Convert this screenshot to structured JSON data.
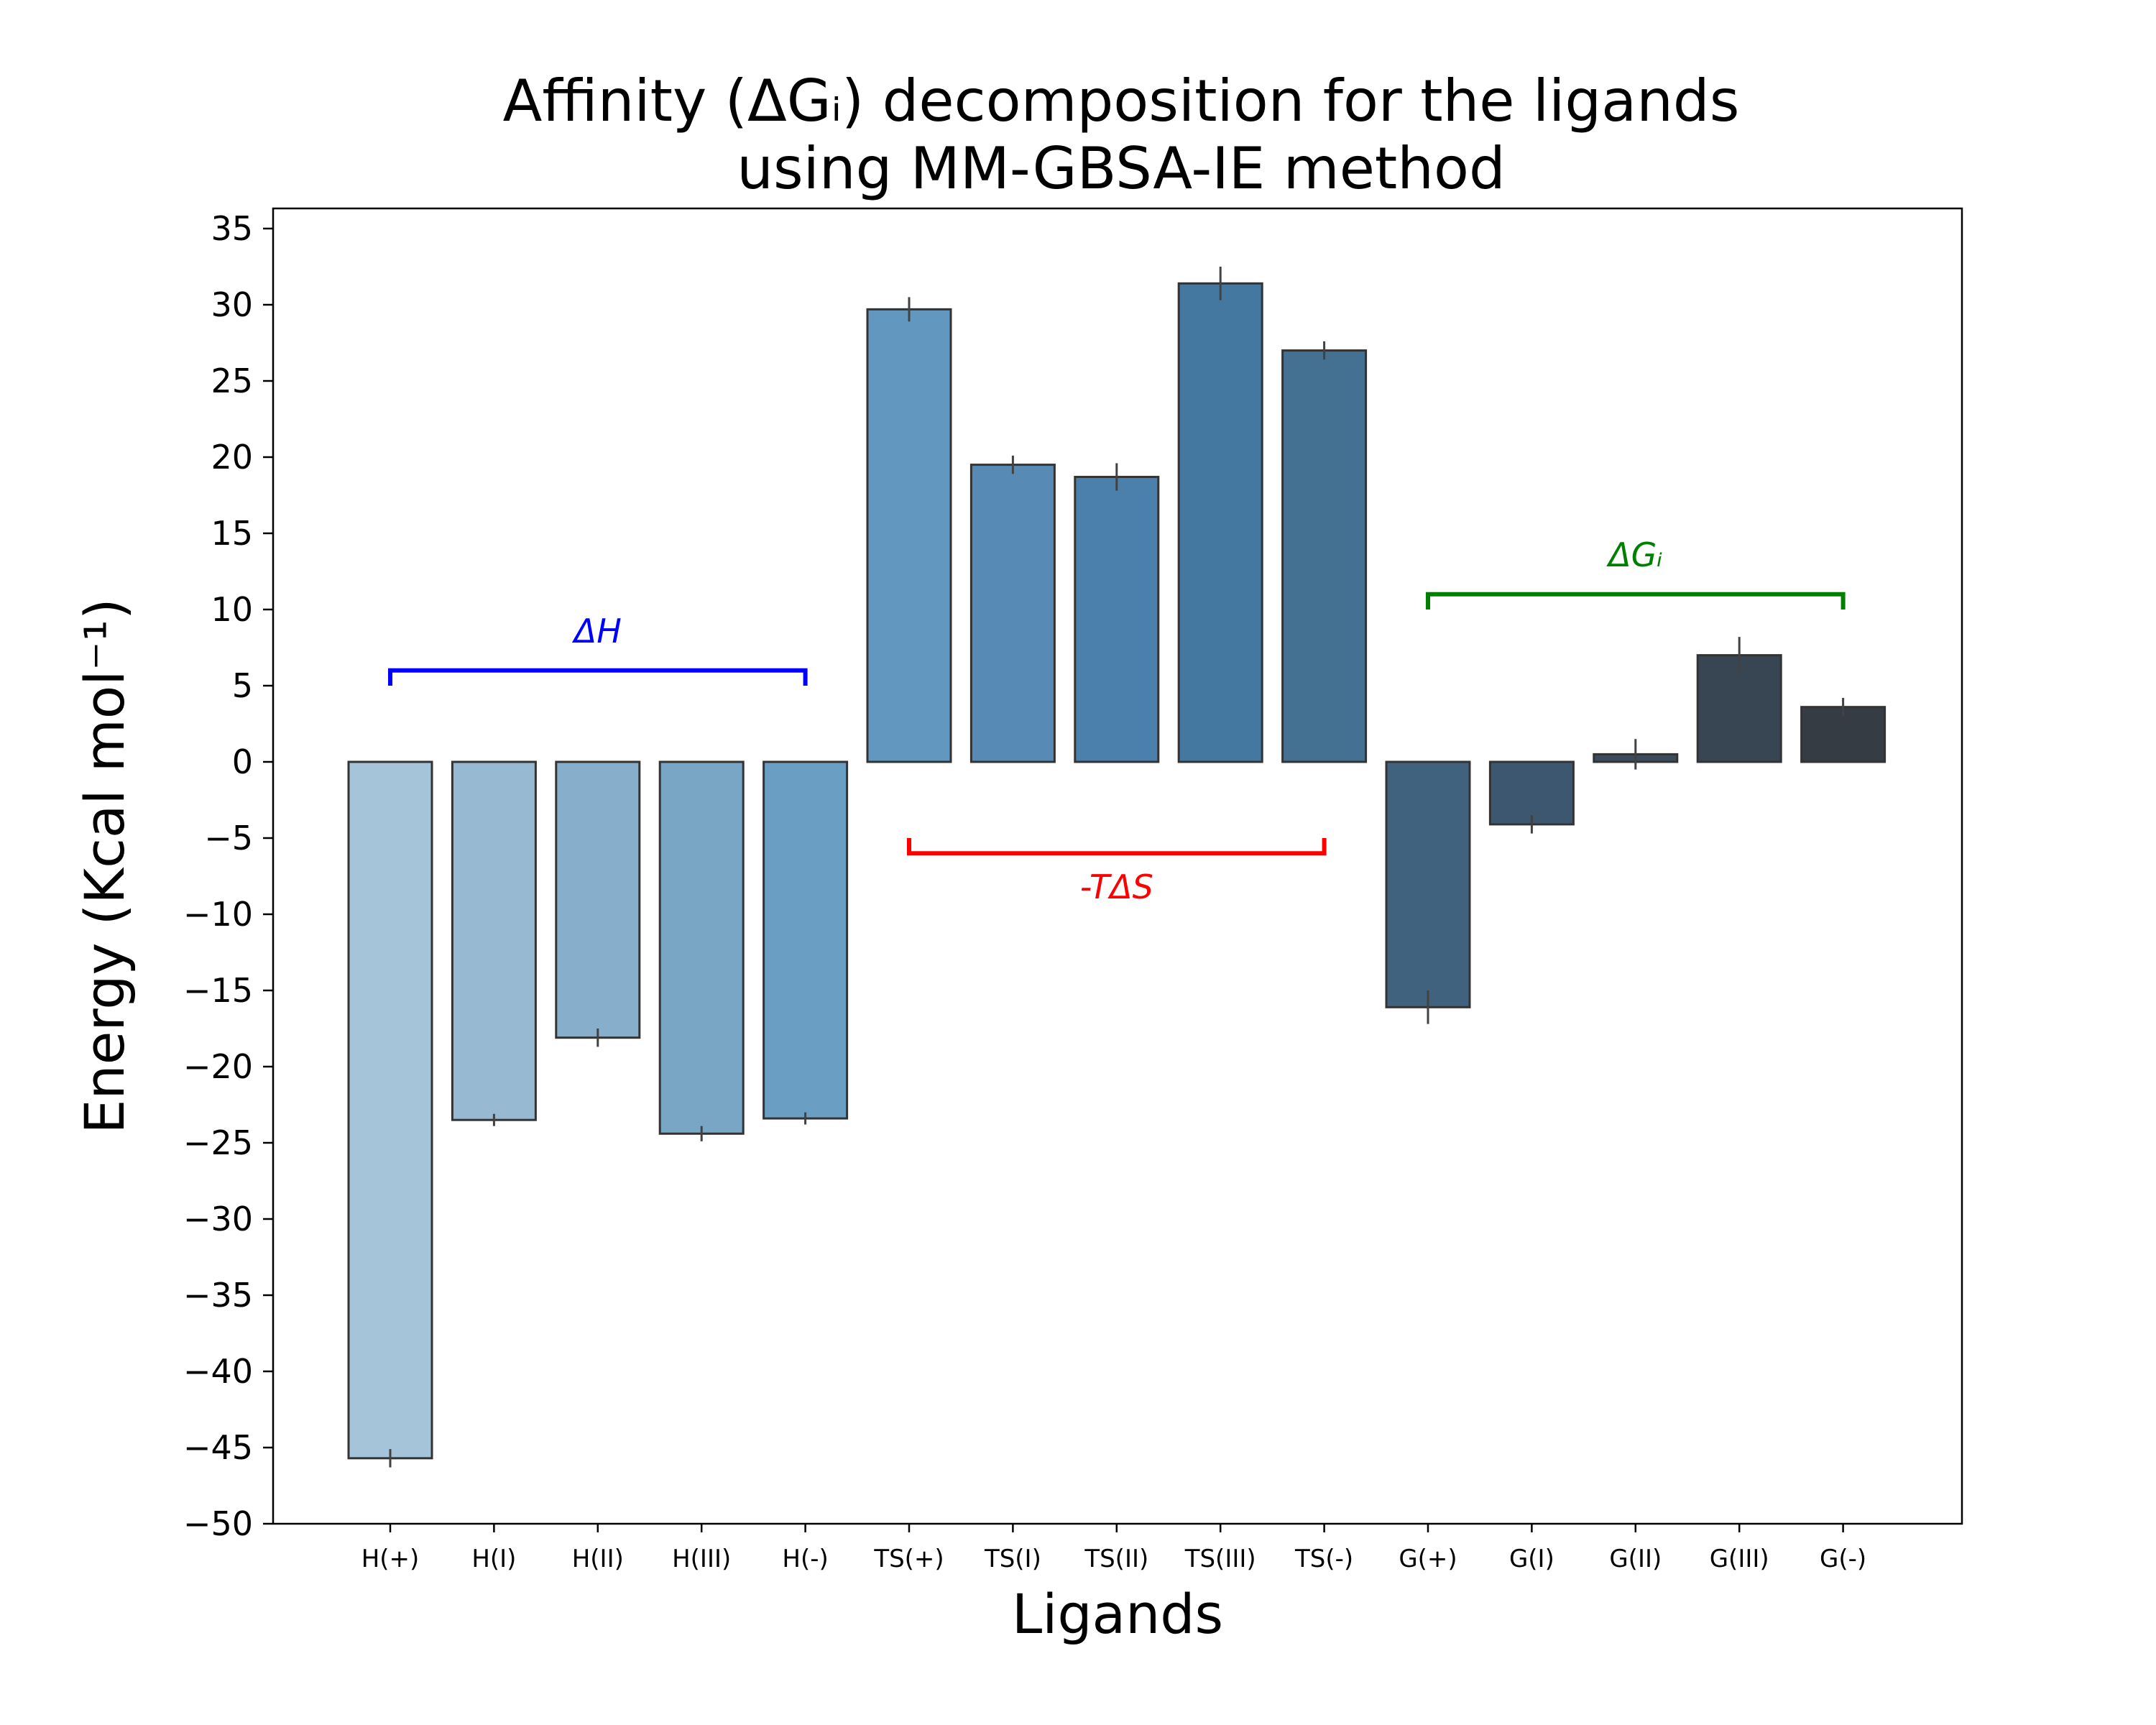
{
  "chart_data": {
    "type": "bar",
    "title_lines": [
      "Affinity (ΔGᵢ) decomposition for the ligands",
      "using MM-GBSA-IE method"
    ],
    "xlabel": "Ligands",
    "ylabel": "Energy (Kcal mol⁻¹)",
    "ylim": [
      -50,
      36
    ],
    "yticks": [
      35,
      30,
      25,
      20,
      15,
      10,
      5,
      0,
      -5,
      -10,
      -15,
      -20,
      -25,
      -30,
      -35,
      -40,
      -45,
      -50
    ],
    "grid": false,
    "categories": [
      "H(+)",
      "H(I)",
      "H(II)",
      "H(III)",
      "H(-)",
      "TS(+)",
      "TS(I)",
      "TS(II)",
      "TS(III)",
      "TS(-)",
      "G(+)",
      "G(I)",
      "G(II)",
      "G(III)",
      "G(-)"
    ],
    "values": [
      -45.7,
      -23.5,
      -18.1,
      -24.4,
      -23.4,
      29.7,
      19.5,
      18.7,
      31.4,
      27.0,
      -16.1,
      -4.1,
      0.5,
      7.0,
      3.6
    ],
    "errors": [
      0.6,
      0.4,
      0.6,
      0.5,
      0.4,
      0.8,
      0.6,
      0.9,
      1.1,
      0.6,
      1.1,
      0.6,
      1.0,
      1.2,
      0.6
    ],
    "bar_colors": [
      "#a6c4d9",
      "#97b9d2",
      "#87aeca",
      "#7aa6c6",
      "#6b9ec3",
      "#6298c0",
      "#578bb5",
      "#4b80ac",
      "#4578a1",
      "#447092",
      "#40627e",
      "#3d5770",
      "#3b4c5d",
      "#384654",
      "#353c44"
    ],
    "annotations": [
      {
        "label": "ΔH",
        "color": "#0000ff",
        "from_index": 0,
        "to_index": 4,
        "bracket_y": 6,
        "tick_end_y": 5,
        "text_y": 8.5
      },
      {
        "label": "-TΔS",
        "color": "#ff0000",
        "from_index": 5,
        "to_index": 9,
        "bracket_y": -6,
        "tick_end_y": -5,
        "text_y": -8.3
      },
      {
        "label": "ΔGᵢ",
        "color": "#008000",
        "from_index": 10,
        "to_index": 14,
        "bracket_y": 11,
        "tick_end_y": 10,
        "text_y": 13.5
      }
    ]
  }
}
